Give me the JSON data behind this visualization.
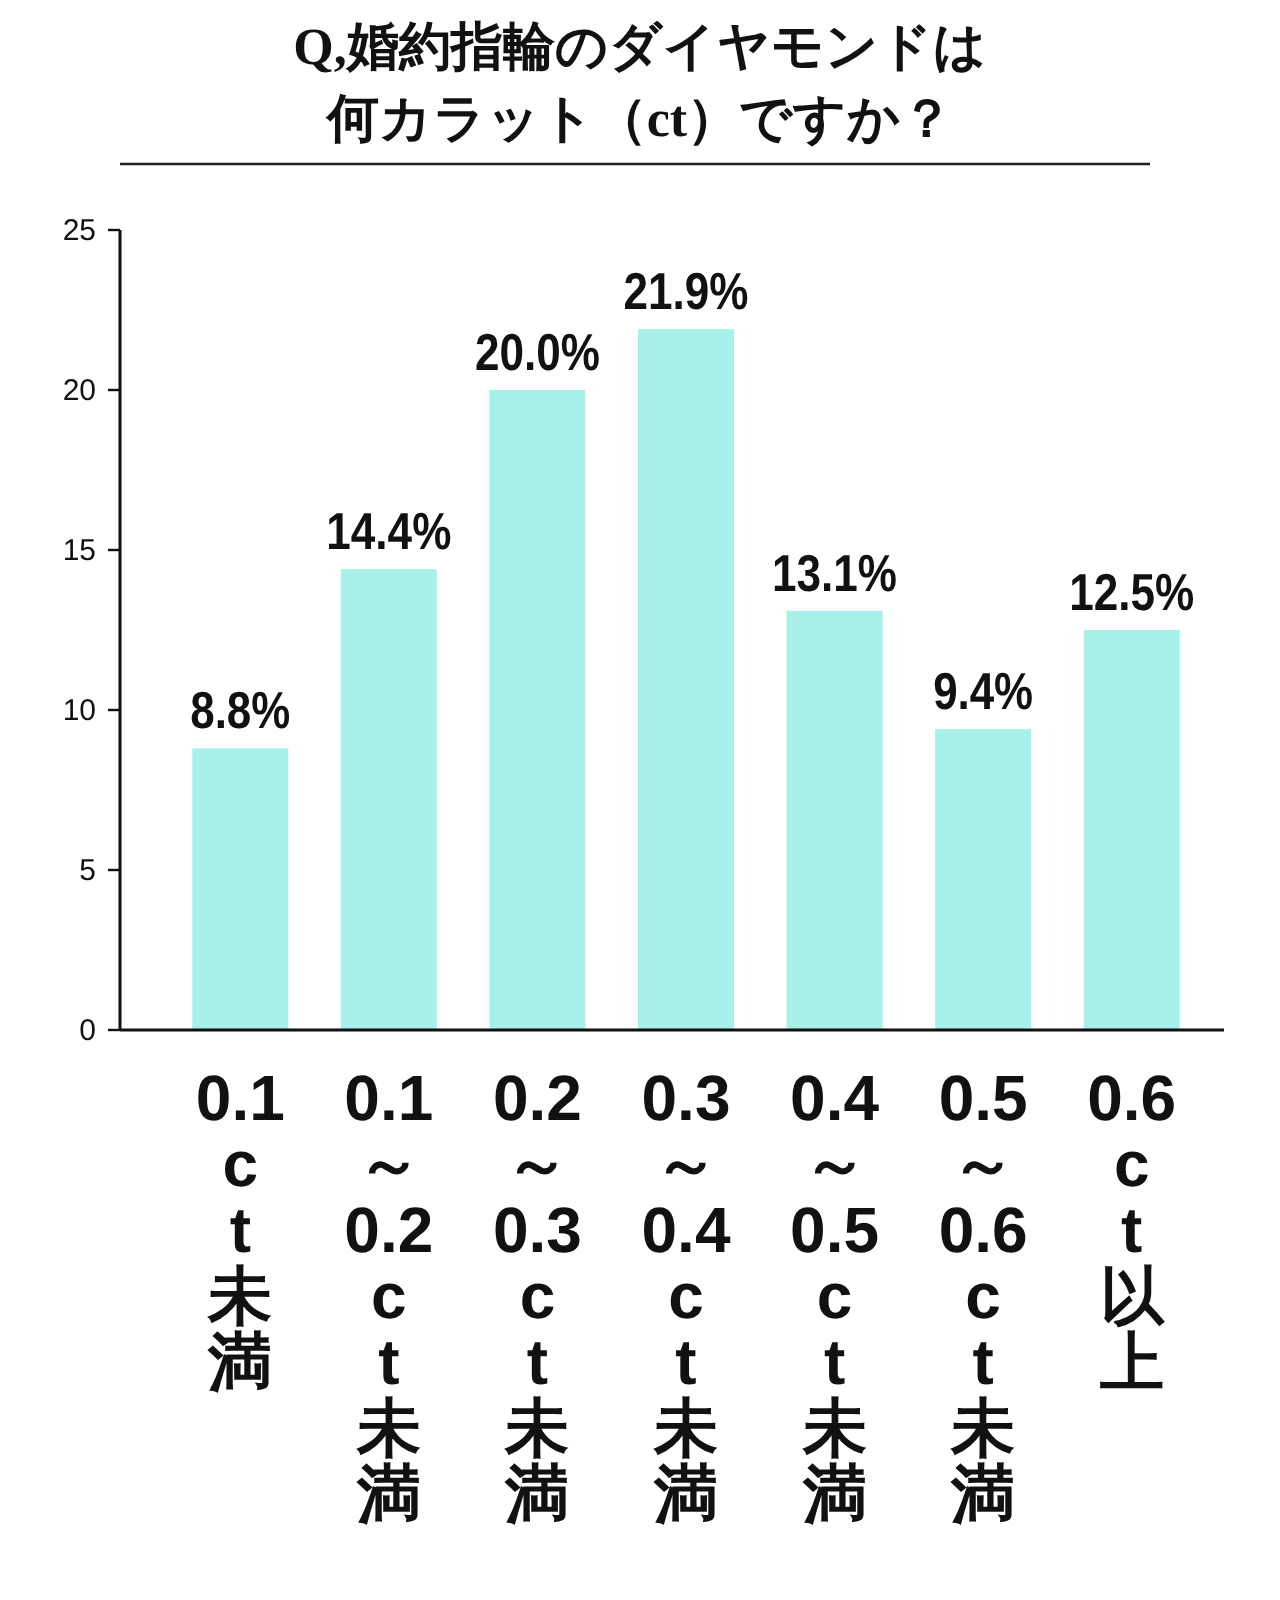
{
  "chart_data": {
    "type": "bar",
    "title": "Q,婚約指輪のダイヤモンドは何カラット（ct）ですか？",
    "categories": [
      "0.1ct未満",
      "0.1～0.2ct未満",
      "0.2～0.3ct未満",
      "0.3～0.4ct未満",
      "0.4～0.5ct未満",
      "0.5～0.6ct未満",
      "0.6ct以上"
    ],
    "values": [
      8.8,
      14.4,
      20.0,
      21.9,
      13.1,
      9.4,
      12.5
    ],
    "value_labels": [
      "8.8%",
      "14.4%",
      "20.0%",
      "21.9%",
      "13.1%",
      "9.4%",
      "12.5%"
    ],
    "color": "#a8f0ea",
    "ylim": [
      0,
      25
    ],
    "yticks": [
      0,
      5,
      10,
      15,
      20,
      25
    ],
    "grid": false
  }
}
